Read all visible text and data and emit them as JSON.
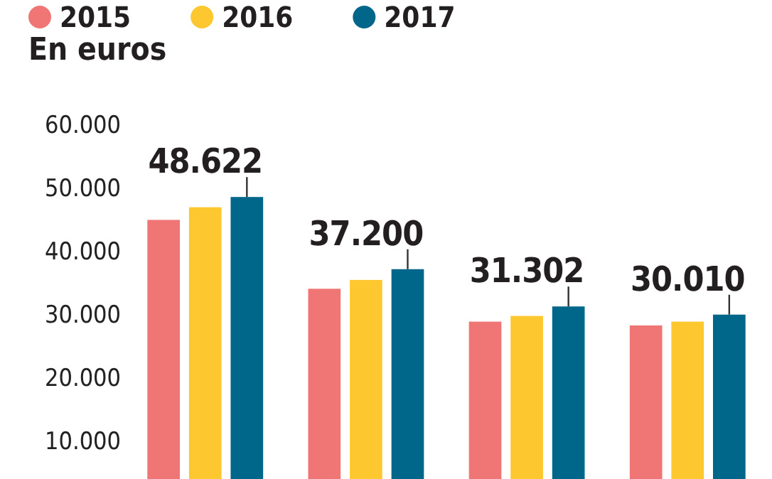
{
  "chart_data": {
    "type": "bar",
    "ylabel": "En euros",
    "categories": [
      null,
      null,
      null,
      null
    ],
    "series": [
      {
        "name": "2015",
        "color": "#f07575",
        "values": [
          45000,
          34100,
          28900,
          28300
        ]
      },
      {
        "name": "2016",
        "color": "#fdc82f",
        "values": [
          47000,
          35500,
          29800,
          28900
        ]
      },
      {
        "name": "2017",
        "color": "#00668a",
        "values": [
          48622,
          37200,
          31302,
          30010
        ],
        "value_labels": [
          "48.622",
          "37.200",
          "31.302",
          "30.010"
        ]
      }
    ],
    "ylim": [
      4000,
      60000
    ],
    "yticks": [
      {
        "value": 10000,
        "label": "10.000"
      },
      {
        "value": 20000,
        "label": "20.000"
      },
      {
        "value": 30000,
        "label": "30.000"
      },
      {
        "value": 40000,
        "label": "40.000"
      },
      {
        "value": 50000,
        "label": "50.000"
      },
      {
        "value": 60000,
        "label": "60.000"
      }
    ],
    "grid": false,
    "legend": "top"
  }
}
